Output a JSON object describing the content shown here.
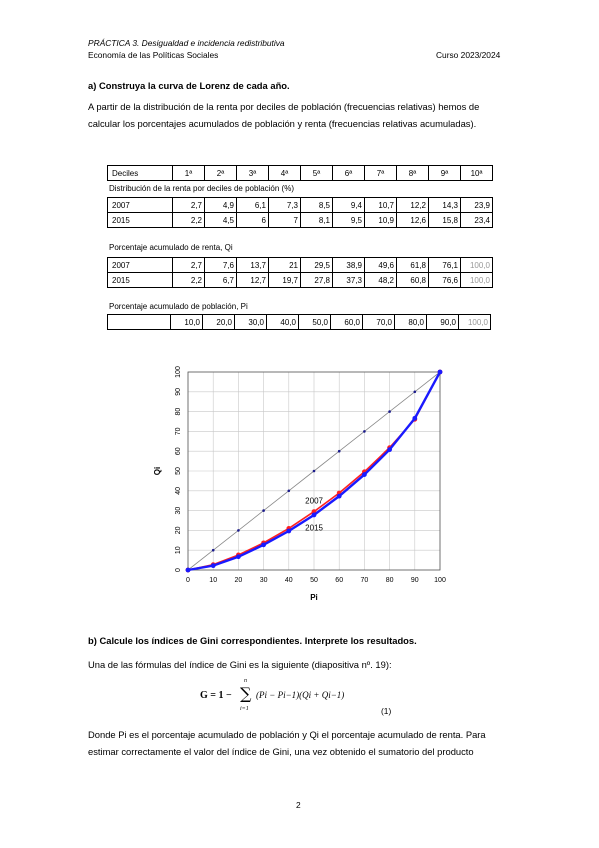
{
  "header": {
    "line1": "PRÁCTICA 3. Desigualdad e incidencia redistributiva",
    "line2": "Economía de las Políticas Sociales",
    "course": "Curso 2023/2024"
  },
  "section_a": {
    "title": "a) Construya la curva de Lorenz de cada año.",
    "para1": "A partir de la distribución de la renta por deciles de población (frecuencias relativas) hemos de",
    "para2": "calcular los porcentajes acumulados de población y renta (frecuencias relativas acumuladas)."
  },
  "table": {
    "deciles_label": "Deciles",
    "deciles": [
      "1ª",
      "2ª",
      "3ª",
      "4ª",
      "5ª",
      "6ª",
      "7ª",
      "8ª",
      "9ª",
      "10ª"
    ],
    "dist_title": "Distribución de la renta por deciles de población (%)",
    "dist_rows": [
      {
        "year": "2007",
        "values": [
          "2,7",
          "4,9",
          "6,1",
          "7,3",
          "8,5",
          "9,4",
          "10,7",
          "12,2",
          "14,3",
          "23,9"
        ]
      },
      {
        "year": "2015",
        "values": [
          "2,2",
          "4,5",
          "6",
          "7",
          "8,1",
          "9,5",
          "10,9",
          "12,6",
          "15,8",
          "23,4"
        ]
      }
    ],
    "qi_title": "Porcentaje acumulado de renta, Qi",
    "qi_rows": [
      {
        "year": "2007",
        "values": [
          "2,7",
          "7,6",
          "13,7",
          "21",
          "29,5",
          "38,9",
          "49,6",
          "61,8",
          "76,1",
          "100,0"
        ]
      },
      {
        "year": "2015",
        "values": [
          "2,2",
          "6,7",
          "12,7",
          "19,7",
          "27,8",
          "37,3",
          "48,2",
          "60,8",
          "76,6",
          "100,0"
        ]
      }
    ],
    "pi_title": "Porcentaje acumulado de población, Pi",
    "pi_values": [
      "10,0",
      "20,0",
      "30,0",
      "40,0",
      "50,0",
      "60,0",
      "70,0",
      "80,0",
      "90,0",
      "100,0"
    ]
  },
  "chart_data": {
    "type": "line",
    "xlabel": "Pi",
    "ylabel": "Qi",
    "xlim": [
      0,
      100
    ],
    "ylim": [
      0,
      100
    ],
    "x_ticks": [
      "0",
      "10",
      "20",
      "30",
      "40",
      "50",
      "60",
      "70",
      "80",
      "90",
      "100"
    ],
    "y_ticks": [
      "0",
      "10",
      "20",
      "30",
      "40",
      "50",
      "60",
      "70",
      "80",
      "90",
      "100"
    ],
    "x": [
      0,
      10,
      20,
      30,
      40,
      50,
      60,
      70,
      80,
      90,
      100
    ],
    "series": [
      {
        "values": [
          0,
          10,
          20,
          30,
          40,
          50,
          60,
          70,
          80,
          90,
          100
        ],
        "color": "#888888",
        "marker": "#1a1a8c"
      },
      {
        "name": "2007",
        "values": [
          0,
          2.7,
          7.6,
          13.7,
          21,
          29.5,
          38.9,
          49.6,
          61.8,
          76.1,
          100
        ],
        "color": "#ff2020",
        "marker": "#ff2020"
      },
      {
        "name": "2015",
        "values": [
          0,
          2.2,
          6.7,
          12.7,
          19.7,
          27.8,
          37.3,
          48.2,
          60.8,
          76.6,
          100
        ],
        "color": "#1a1aff",
        "marker": "#1a1aff"
      }
    ],
    "annotations": [
      "2007",
      "2015"
    ]
  },
  "section_b": {
    "title": "b) Calcule los índices de Gini correspondientes. Interprete los resultados.",
    "intro": "Una de las fórmulas del índice de Gini es la siguiente (diapositiva nº. 19):",
    "formula_lhs": "G = 1 −",
    "formula_sum_top": "n",
    "formula_sum_bottom": "i=1",
    "formula_body": "(Pi − Pi−1)(Qi + Qi−1)",
    "eq_number": "(1)",
    "para1": "Donde Pi es el porcentaje acumulado de población y Qi el porcentaje acumulado de renta. Para",
    "para2": "estimar correctamente el valor del índice de Gini, una vez obtenido el sumatorio del producto"
  },
  "footer": {
    "page": "2"
  }
}
